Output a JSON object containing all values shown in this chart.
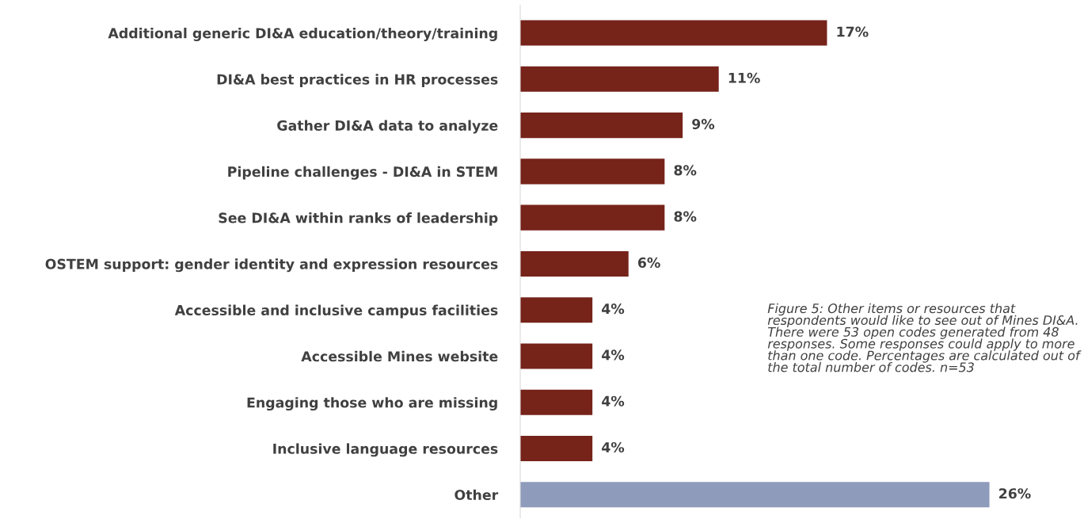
{
  "chart_data": {
    "type": "bar",
    "orientation": "horizontal",
    "categories": [
      "Additional generic DI&A education/theory/training",
      "DI&A best practices in HR processes",
      "Gather DI&A data to analyze",
      "Pipeline challenges - DI&A in STEM",
      "See DI&A within ranks of leadership",
      "OSTEM support: gender identity and expression resources",
      "Accessible and inclusive campus facilities",
      "Accessible Mines website",
      "Engaging those who are missing",
      "Inclusive language resources",
      "Other"
    ],
    "values": [
      17,
      11,
      9,
      8,
      8,
      6,
      4,
      4,
      4,
      4,
      26
    ],
    "value_labels": [
      "17%",
      "11%",
      "9%",
      "8%",
      "8%",
      "6%",
      "4%",
      "4%",
      "4%",
      "4%",
      "26%"
    ],
    "colors": [
      "#76231a",
      "#76231a",
      "#76231a",
      "#76231a",
      "#76231a",
      "#76231a",
      "#76231a",
      "#76231a",
      "#76231a",
      "#76231a",
      "#8e9bbb"
    ],
    "annotations": [
      "Figure 5: Other items or resources that respondents would like to see out of Mines DI&A. There were 53 open codes generated from 48 responses. Some responses could apply to more than one code. Percentages are calculated out of the total number of codes. n=53"
    ],
    "grid": false,
    "legend": false
  }
}
